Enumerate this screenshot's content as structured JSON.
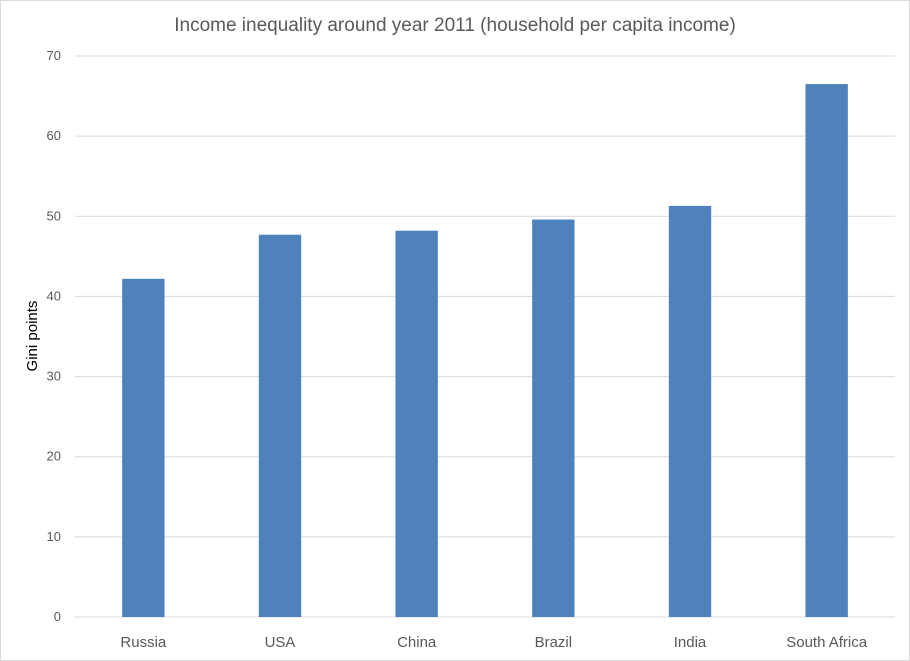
{
  "chart_data": {
    "type": "bar",
    "title": "Income inequality around year 2011 (household  per capita income)",
    "xlabel": "",
    "ylabel": "Gini points",
    "categories": [
      "Russia",
      "USA",
      "China",
      "Brazil",
      "India",
      "South Africa"
    ],
    "values": [
      42.2,
      47.7,
      48.2,
      49.6,
      51.3,
      66.5
    ],
    "ylim": [
      0,
      70
    ],
    "yticks": [
      0,
      10,
      20,
      30,
      40,
      50,
      60,
      70
    ],
    "grid": true,
    "legend": "none",
    "bar_color": "#4f81bd"
  }
}
